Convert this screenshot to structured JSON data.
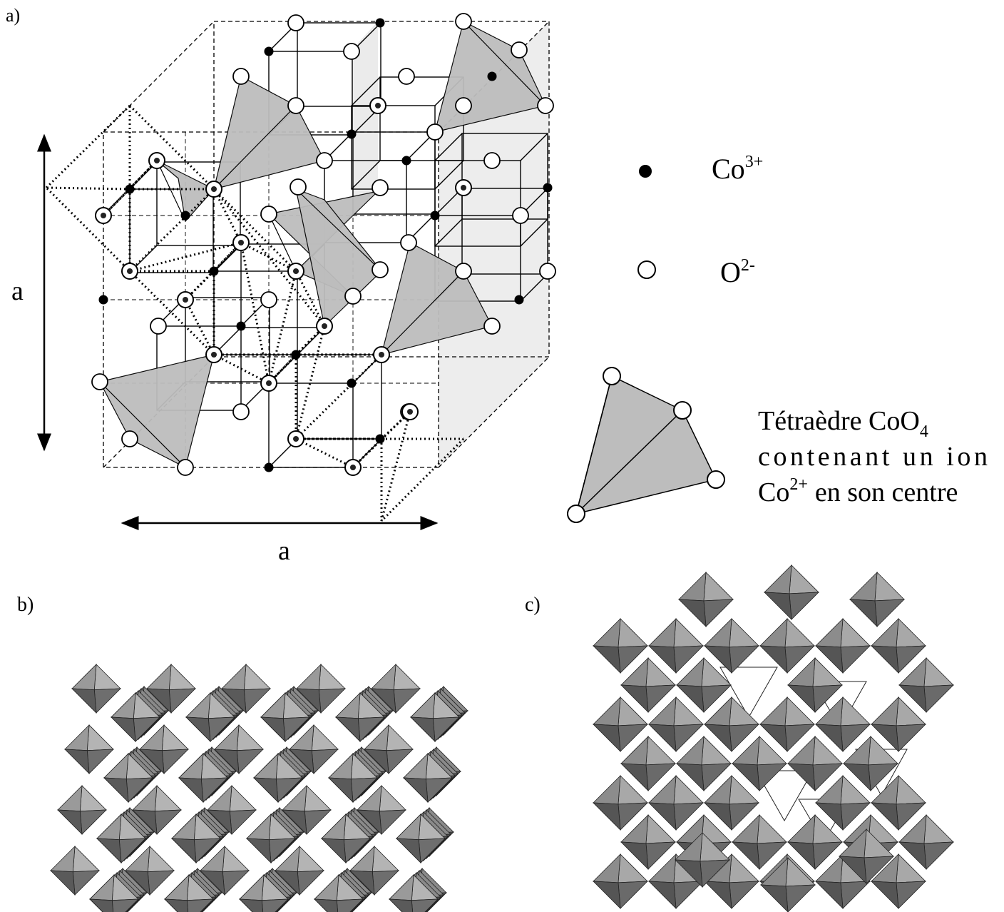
{
  "panels": [
    {
      "label": "a)"
    },
    {
      "label": "b)"
    },
    {
      "label": "c)"
    }
  ],
  "dimensions": {
    "vertical": "a",
    "horizontal": "a"
  },
  "legend": {
    "co3": {
      "symbol": "Co",
      "charge": "3+"
    },
    "o2": {
      "symbol": "O",
      "charge": "2-"
    },
    "tetrahedron": {
      "line1": "Tétraèdre CoO",
      "line1_sub": "4",
      "line2": "contenant un ion",
      "line3_symbol": "Co",
      "line3_charge": "2+",
      "line3_rest": "en son centre"
    }
  }
}
